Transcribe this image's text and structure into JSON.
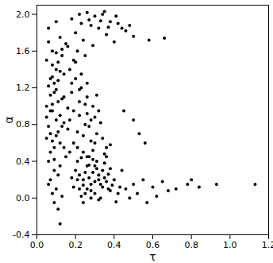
{
  "chart_data": {
    "type": "scatter",
    "x_label": "τ",
    "y_label": "α",
    "color": "#000000",
    "marker": "circle",
    "grid": false,
    "xlim": [
      0,
      1.2
    ],
    "xticks": [
      {
        "value": 0,
        "label": "0.0"
      },
      0.2,
      0.4,
      0.6,
      0.8,
      {
        "value": 1,
        "label": "1.0"
      },
      1.2
    ],
    "ylim": [
      -0.4,
      2.1
    ],
    "yticks": [
      -0.4,
      {
        "value": 0,
        "label": "0.0"
      },
      0.4,
      0.8,
      1.2,
      1.6,
      {
        "value": 2,
        "label": "2.0"
      }
    ],
    "x": [
      0.06,
      0.08,
      0.1,
      0.12,
      0.07,
      0.09,
      0.11,
      0.05,
      0.13,
      0.08,
      0.1,
      0.06,
      0.14,
      0.07,
      0.09,
      0.12,
      0.05,
      0.11,
      0.08,
      0.13,
      0.06,
      0.09,
      0.12,
      0.07,
      0.1,
      0.15,
      0.08,
      0.11,
      0.05,
      0.14,
      0.09,
      0.07,
      0.12,
      0.1,
      0.06,
      0.13,
      0.08,
      0.11,
      0.16,
      0.12,
      0.07,
      0.1,
      0.05,
      0.08,
      0.14,
      0.09,
      0.11,
      0.06,
      0.13,
      0.1,
      0.12,
      0.08,
      0.07,
      0.15,
      0.09,
      0.11,
      0.06,
      0.13,
      0.1,
      0.14,
      0.18,
      0.22,
      0.26,
      0.3,
      0.34,
      0.38,
      0.2,
      0.28,
      0.32,
      0.42,
      0.46,
      0.5,
      0.36,
      0.24,
      0.16,
      0.4,
      0.44,
      0.48,
      0.27,
      0.33,
      0.21,
      0.29,
      0.37,
      0.25,
      0.19,
      0.58,
      0.66,
      0.41,
      0.35,
      0.23,
      0.17,
      0.2,
      0.23,
      0.26,
      0.29,
      0.32,
      0.18,
      0.22,
      0.25,
      0.28,
      0.31,
      0.34,
      0.19,
      0.21,
      0.24,
      0.27,
      0.3,
      0.17,
      0.36,
      0.22,
      0.2,
      0.23,
      0.26,
      0.18,
      0.16,
      0.21,
      0.25,
      0.28,
      0.33,
      0.19,
      0.24,
      0.27,
      0.3,
      0.17,
      0.22,
      0.35,
      0.29,
      0.38,
      0.26,
      0.31,
      0.2,
      0.22,
      0.24,
      0.26,
      0.28,
      0.3,
      0.32,
      0.34,
      0.36,
      0.38,
      0.21,
      0.23,
      0.25,
      0.27,
      0.29,
      0.31,
      0.33,
      0.35,
      0.37,
      0.39,
      0.4,
      0.42,
      0.44,
      0.19,
      0.24,
      0.28,
      0.32,
      0.36,
      0.3,
      0.26,
      0.23,
      0.27,
      0.31,
      0.35,
      0.29,
      0.33,
      0.25,
      0.21,
      0.38,
      0.41,
      0.34,
      0.28,
      0.22,
      0.37,
      0.3,
      0.26,
      0.32,
      0.24,
      0.43,
      0.18,
      0.46,
      0.48,
      0.5,
      0.52,
      0.55,
      0.57,
      0.6,
      0.62,
      0.65,
      0.68,
      0.72,
      0.78,
      0.8,
      0.84,
      0.93,
      1.13,
      0.45,
      0.5,
      0.53,
      0.56
    ],
    "values": [
      1.85,
      1.6,
      1.4,
      1.75,
      1.3,
      1.15,
      1.05,
      1.5,
      1.62,
      0.95,
      0.85,
      1.22,
      1.1,
      0.7,
      0.55,
      0.9,
      1.0,
      1.28,
      1.45,
      0.78,
      0.4,
      0.3,
      0.6,
      0.2,
      0.1,
      0.45,
      0.05,
      0.25,
      0.65,
      1.35,
      -0.05,
      0.5,
      -0.28,
      1.92,
      1.7,
      1.55,
      1.02,
      0.72,
      0.98,
      0.35,
      1.12,
      1.18,
      0.88,
      0.62,
      0.82,
      1.25,
      1.48,
      0.15,
      0.02,
      0.68,
      1.38,
      1.32,
      0.95,
      1.68,
      0.42,
      -0.12,
      0.78,
      1.08,
      1.58,
      0.55,
      1.95,
      2.0,
      2.02,
      1.98,
      2.0,
      1.92,
      1.8,
      1.88,
      1.85,
      1.9,
      1.82,
      1.76,
      1.78,
      1.72,
      1.65,
      1.7,
      1.85,
      1.88,
      1.94,
      1.93,
      1.6,
      1.66,
      1.86,
      1.55,
      1.5,
      1.72,
      1.74,
      1.98,
      2.03,
      1.9,
      1.4,
      1.3,
      1.2,
      1.1,
      1.0,
      0.95,
      1.15,
      0.9,
      0.8,
      0.85,
      0.7,
      0.65,
      0.6,
      0.55,
      0.5,
      0.45,
      0.6,
      0.85,
      0.55,
      1.05,
      1.48,
      1.35,
      0.92,
      1.25,
      0.75,
      0.72,
      1.02,
      0.62,
      0.82,
      0.95,
      0.68,
      0.78,
      0.88,
      0.5,
      1.18,
      0.48,
      0.52,
      0.58,
      1.25,
      1.12,
      0.3,
      0.1,
      0.2,
      0.35,
      0.15,
      0.05,
      0.25,
      0.12,
      0.18,
      0.08,
      0.4,
      0.02,
      0.28,
      0.22,
      0.42,
      0.32,
      0.0,
      0.38,
      0.26,
      0.14,
      0.2,
      0.05,
      0.3,
      0.12,
      -0.05,
      0.08,
      -0.02,
      0.45,
      0.18,
      0.1,
      0.44,
      0.36,
      0.4,
      0.22,
      0.28,
      0.15,
      0.05,
      0.2,
      0.32,
      -0.04,
      0.3,
      0.0,
      0.25,
      0.1,
      0.35,
      0.45,
      0.2,
      0.14,
      0.12,
      0.22,
      0.1,
      0.0,
      0.15,
      0.05,
      0.2,
      -0.05,
      0.12,
      0.02,
      0.18,
      0.08,
      0.1,
      0.15,
      0.2,
      0.12,
      0.15,
      0.15,
      0.95,
      0.85,
      0.7,
      0.6
    ]
  }
}
